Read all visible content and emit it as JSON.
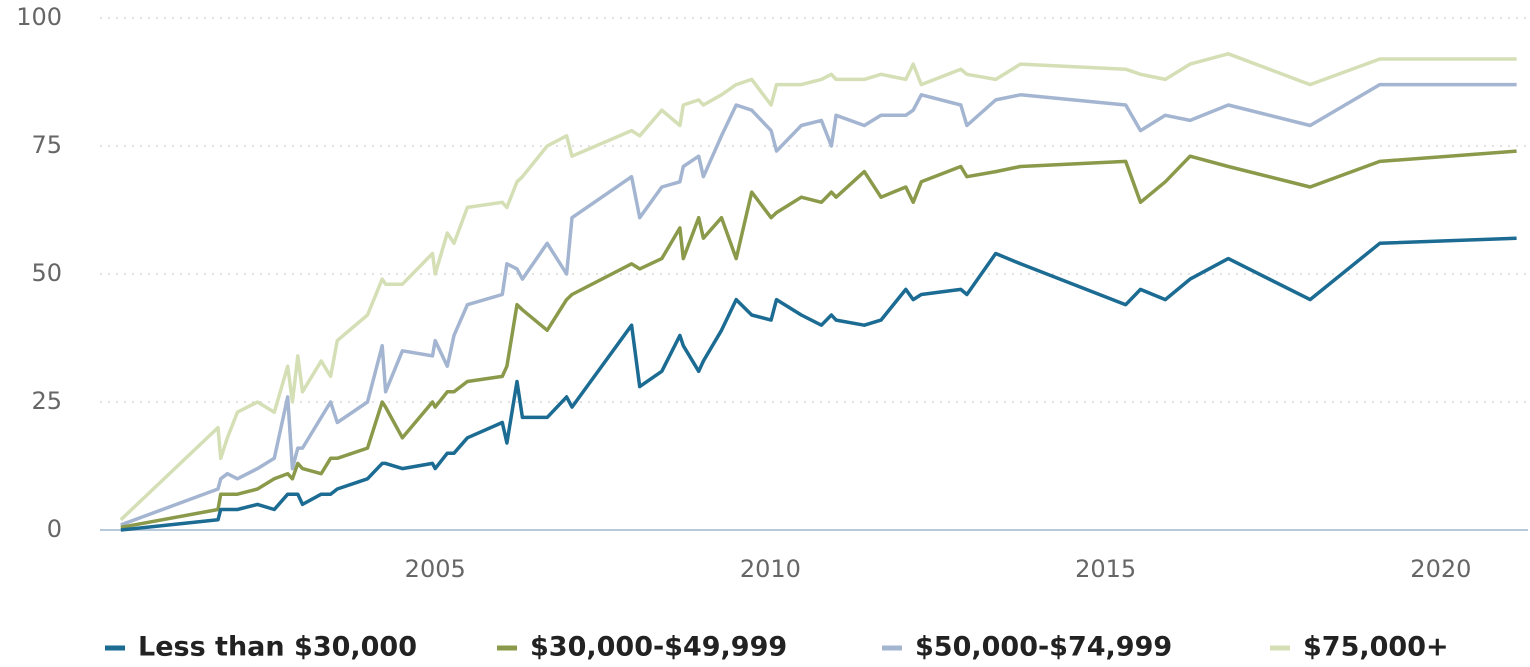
{
  "chart_data": {
    "type": "line",
    "x": [
      2000.31,
      2001.76,
      2001.8,
      2001.9,
      2002.05,
      2002.35,
      2002.6,
      2002.8,
      2002.87,
      2002.95,
      2003.02,
      2003.3,
      2003.44,
      2003.54,
      2003.99,
      2004.21,
      2004.26,
      2004.51,
      2004.96,
      2005.0,
      2005.18,
      2005.28,
      2005.48,
      2006.0,
      2006.07,
      2006.22,
      2006.3,
      2006.67,
      2006.96,
      2007.04,
      2007.93,
      2008.05,
      2008.38,
      2008.65,
      2008.7,
      2008.93,
      2009.0,
      2009.27,
      2009.49,
      2009.72,
      2010.01,
      2010.09,
      2010.46,
      2010.76,
      2010.91,
      2010.98,
      2011.4,
      2011.65,
      2012.02,
      2012.13,
      2012.25,
      2012.84,
      2012.93,
      2013.36,
      2013.73,
      2015.3,
      2015.52,
      2015.89,
      2016.26,
      2016.83,
      2018.05,
      2019.09,
      2021.13
    ],
    "series": [
      {
        "name": "Less than $30,000",
        "color": "#1b6b93",
        "values": [
          0,
          2,
          4,
          4,
          4,
          5,
          4,
          7,
          7,
          7,
          5,
          7,
          7,
          8,
          10,
          13,
          13,
          12,
          13,
          12,
          15,
          15,
          18,
          21,
          17,
          29,
          22,
          22,
          26,
          24,
          40,
          28,
          31,
          38,
          36,
          31,
          33,
          39,
          45,
          42,
          41,
          45,
          42,
          40,
          42,
          41,
          40,
          41,
          47,
          45,
          46,
          47,
          46,
          54,
          52,
          44,
          47,
          45,
          49,
          53,
          45,
          56,
          57
        ]
      },
      {
        "name": "$30,000-$49,999",
        "color": "#8a9a4a",
        "values": [
          0.5,
          4,
          7,
          7,
          7,
          8,
          10,
          11,
          10,
          13,
          12,
          11,
          14,
          14,
          16,
          25,
          24,
          18,
          25,
          24,
          27,
          27,
          29,
          30,
          32,
          44,
          43,
          39,
          45,
          46,
          52,
          51,
          53,
          59,
          53,
          61,
          57,
          61,
          53,
          66,
          61,
          62,
          65,
          64,
          66,
          65,
          70,
          65,
          67,
          64,
          68,
          71,
          69,
          70,
          71,
          72,
          64,
          68,
          73,
          71,
          67,
          72,
          74
        ]
      },
      {
        "name": "$50,000-$74,999",
        "color": "#a3b5d1",
        "values": [
          1,
          8,
          10,
          11,
          10,
          12,
          14,
          26,
          12,
          16,
          16,
          22,
          25,
          21,
          25,
          36,
          27,
          35,
          34,
          37,
          32,
          38,
          44,
          46,
          52,
          51,
          49,
          56,
          50,
          61,
          69,
          61,
          67,
          68,
          71,
          73,
          69,
          77,
          83,
          82,
          78,
          74,
          79,
          80,
          75,
          81,
          79,
          81,
          81,
          82,
          85,
          83,
          79,
          84,
          85,
          83,
          78,
          81,
          80,
          83,
          79,
          87,
          87
        ]
      },
      {
        "name": "$75,000+",
        "color": "#d5dfb6",
        "values": [
          2,
          20,
          14,
          18,
          23,
          25,
          23,
          32,
          25,
          34,
          27,
          33,
          30,
          37,
          42,
          49,
          48,
          48,
          54,
          50,
          58,
          56,
          63,
          64,
          63,
          68,
          69,
          75,
          77,
          73,
          78,
          77,
          82,
          79,
          83,
          84,
          83,
          85,
          87,
          88,
          83,
          87,
          87,
          88,
          89,
          88,
          88,
          89,
          88,
          91,
          87,
          90,
          89,
          88,
          91,
          90,
          89,
          88,
          91,
          93,
          87,
          92,
          92
        ]
      }
    ],
    "xlim": [
      2000,
      2021.3
    ],
    "xticks": [
      2005,
      2010,
      2015,
      2020
    ],
    "ylim": [
      0,
      100
    ],
    "yticks": [
      0,
      25,
      50,
      75,
      100
    ],
    "grid": true
  }
}
